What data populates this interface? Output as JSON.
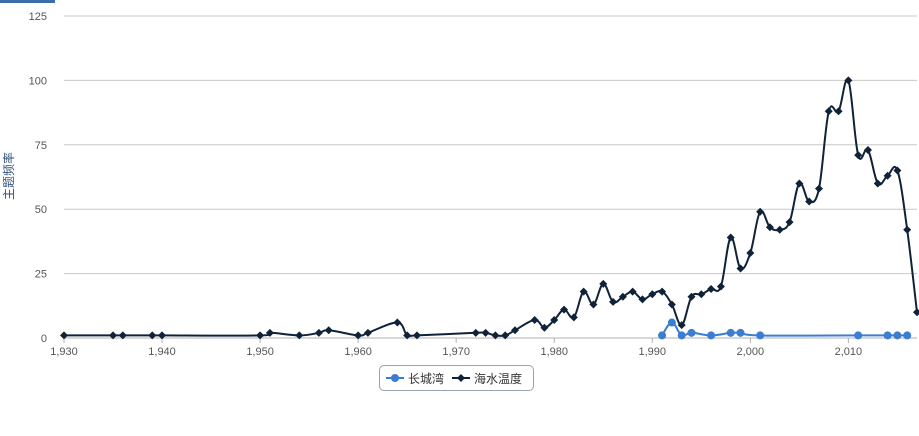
{
  "chart_data": {
    "type": "line",
    "ylabel": "主题频率",
    "xlim": [
      1930,
      2017
    ],
    "ylim": [
      0,
      125
    ],
    "x_ticks": [
      "1,930",
      "1,940",
      "1,950",
      "1,960",
      "1,970",
      "1,980",
      "1,990",
      "2,000",
      "2,010"
    ],
    "x_tick_values": [
      1930,
      1940,
      1950,
      1960,
      1970,
      1980,
      1990,
      2000,
      2010
    ],
    "y_ticks": [
      "0",
      "25",
      "50",
      "75",
      "100",
      "125"
    ],
    "y_tick_values": [
      0,
      25,
      50,
      75,
      100,
      125
    ],
    "grid": true,
    "legend_position": "bottom-center",
    "series": [
      {
        "name": "长城湾",
        "color": "#3a7dd1",
        "marker": "circle",
        "x": [
          1991,
          1992,
          1993,
          1994,
          1996,
          1998,
          1999,
          2001,
          2011,
          2014,
          2015,
          2016
        ],
        "y": [
          1,
          6,
          1,
          2,
          1,
          2,
          2,
          1,
          1,
          1,
          1,
          1
        ]
      },
      {
        "name": "海水温度",
        "color": "#0f2238",
        "marker": "diamond",
        "x": [
          1930,
          1935,
          1936,
          1939,
          1940,
          1950,
          1951,
          1954,
          1956,
          1957,
          1960,
          1961,
          1964,
          1965,
          1966,
          1972,
          1973,
          1974,
          1975,
          1976,
          1978,
          1979,
          1980,
          1981,
          1982,
          1983,
          1984,
          1985,
          1986,
          1987,
          1988,
          1989,
          1990,
          1991,
          1992,
          1993,
          1994,
          1995,
          1996,
          1997,
          1998,
          1999,
          2000,
          2001,
          2002,
          2003,
          2004,
          2005,
          2006,
          2007,
          2008,
          2009,
          2010,
          2011,
          2012,
          2013,
          2014,
          2015,
          2016,
          2017
        ],
        "y": [
          1,
          1,
          1,
          1,
          1,
          1,
          2,
          1,
          2,
          3,
          1,
          2,
          6,
          1,
          1,
          2,
          2,
          1,
          1,
          3,
          7,
          4,
          7,
          11,
          8,
          18,
          13,
          21,
          14,
          16,
          18,
          15,
          17,
          18,
          13,
          5,
          16,
          17,
          19,
          20,
          39,
          27,
          33,
          49,
          43,
          42,
          45,
          60,
          53,
          58,
          88,
          88,
          100,
          71,
          73,
          60,
          63,
          65,
          42,
          10
        ]
      }
    ]
  }
}
